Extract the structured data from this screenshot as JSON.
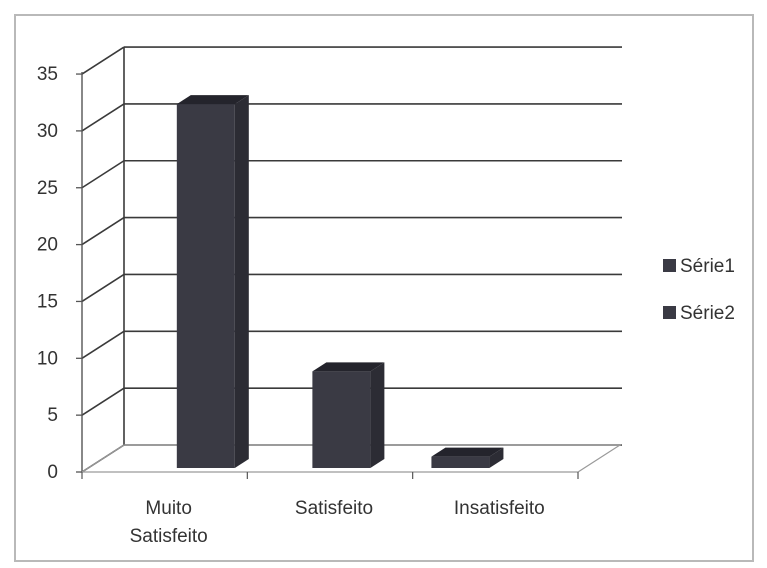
{
  "chart_data": {
    "type": "bar",
    "categories": [
      "Muito Satisfeito",
      "Satisfeito",
      "Insatisfeito"
    ],
    "category_lines": [
      [
        "Muito",
        "Satisfeito"
      ],
      [
        "Satisfeito"
      ],
      [
        "Insatisfeito"
      ]
    ],
    "series": [
      {
        "name": "Série1",
        "values": [
          32,
          8.5,
          1
        ],
        "color": "#3a3a44"
      },
      {
        "name": "Série2",
        "values": [
          0,
          0,
          0
        ],
        "color": "#3a3a44"
      }
    ],
    "ylim": [
      0,
      35
    ],
    "yticks": [
      0,
      5,
      10,
      15,
      20,
      25,
      30,
      35
    ],
    "grid": true,
    "legend_position": "right",
    "three_d": true,
    "colors": {
      "bar_front": "#3a3a44",
      "bar_top": "#24242c",
      "bar_side": "#2c2c34",
      "grid": "#3a3a3a",
      "axis": "#555555"
    }
  }
}
